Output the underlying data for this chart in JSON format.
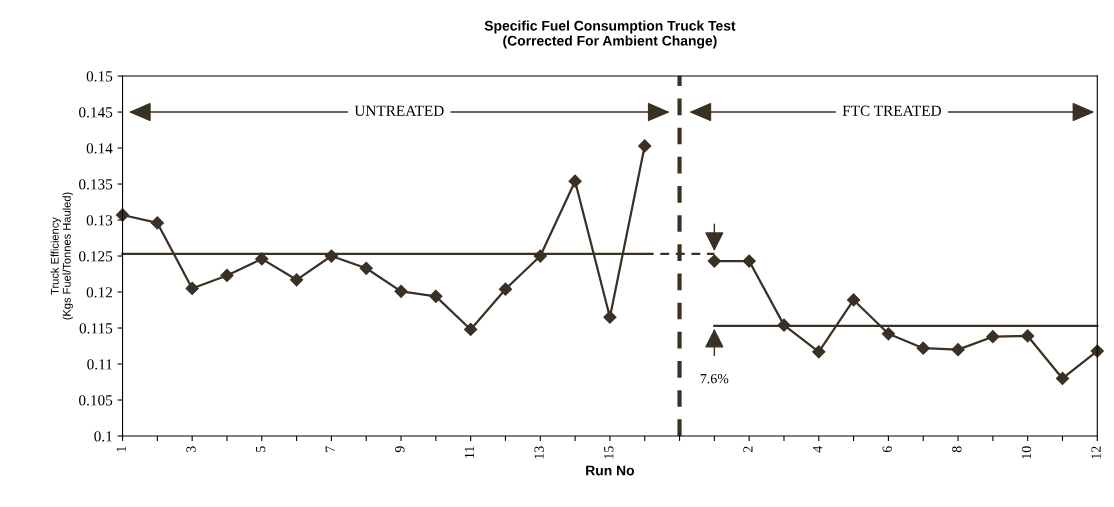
{
  "chart_data": {
    "type": "line",
    "title": "Specific Fuel Consumption Truck Test\n(Corrected For Ambient Change)",
    "xlabel": "Run No",
    "ylabel": "Truck Efficiency\n(Kgs Fuel/Tonnes Hauled)",
    "categories": [
      "1",
      null,
      "3",
      null,
      "5",
      null,
      "7",
      null,
      "9",
      null,
      "11",
      null,
      "13",
      null,
      "15",
      null,
      null,
      null,
      "2",
      null,
      "4",
      null,
      "6",
      null,
      "8",
      null,
      "10",
      null,
      "12"
    ],
    "series": [
      {
        "color": "#3a3024",
        "marker": "diamond",
        "line_style": "solid",
        "values": [
          0.1307,
          0.1296,
          0.1205,
          0.1223,
          0.1246,
          0.1217,
          0.125,
          0.1233,
          0.1201,
          0.1194,
          0.1148,
          0.1204,
          0.125,
          0.1354,
          0.1165,
          0.1403,
          null,
          0.1243,
          0.1243,
          0.1154,
          0.1117,
          0.1189,
          0.1142,
          0.1122,
          0.112,
          0.1138,
          0.1139,
          0.108,
          0.1118
        ]
      },
      {
        "color": "#3a3024",
        "marker": "none",
        "line_style": "solid",
        "values": [
          0.1253,
          0.1253,
          0.1253,
          0.1253,
          0.1253,
          0.1253,
          0.1253,
          0.1253,
          0.1253,
          0.1253,
          0.1253,
          0.1253,
          0.1253,
          0.1253,
          0.1253,
          0.1253,
          null,
          null,
          null,
          null,
          null,
          null,
          null,
          null,
          null,
          null,
          null,
          null,
          null
        ]
      },
      {
        "color": "#3a3024",
        "marker": "none",
        "line_style": "dashed",
        "values": [
          null,
          null,
          null,
          null,
          null,
          null,
          null,
          null,
          null,
          null,
          null,
          null,
          null,
          null,
          null,
          0.1253,
          0.1253,
          0.1253,
          null,
          null,
          null,
          null,
          null,
          null,
          null,
          null,
          null,
          null,
          null
        ]
      },
      {
        "color": "#3a3024",
        "marker": "none",
        "line_style": "solid",
        "values": [
          null,
          null,
          null,
          null,
          null,
          null,
          null,
          null,
          null,
          null,
          null,
          null,
          null,
          null,
          null,
          null,
          null,
          0.1153,
          0.1153,
          0.1153,
          0.1153,
          0.1153,
          0.1153,
          0.1153,
          0.1153,
          0.1153,
          0.1153,
          0.1153,
          0.1153
        ]
      }
    ],
    "annotations": [
      "UNTREATED",
      "FTC TREATED",
      "7.6%"
    ],
    "ylim": [
      0.1,
      0.15
    ],
    "yticks": [
      0.1,
      0.105,
      0.11,
      0.115,
      0.12,
      0.125,
      0.13,
      0.135,
      0.14,
      0.145,
      0.15
    ],
    "grid": false,
    "legend": false
  }
}
